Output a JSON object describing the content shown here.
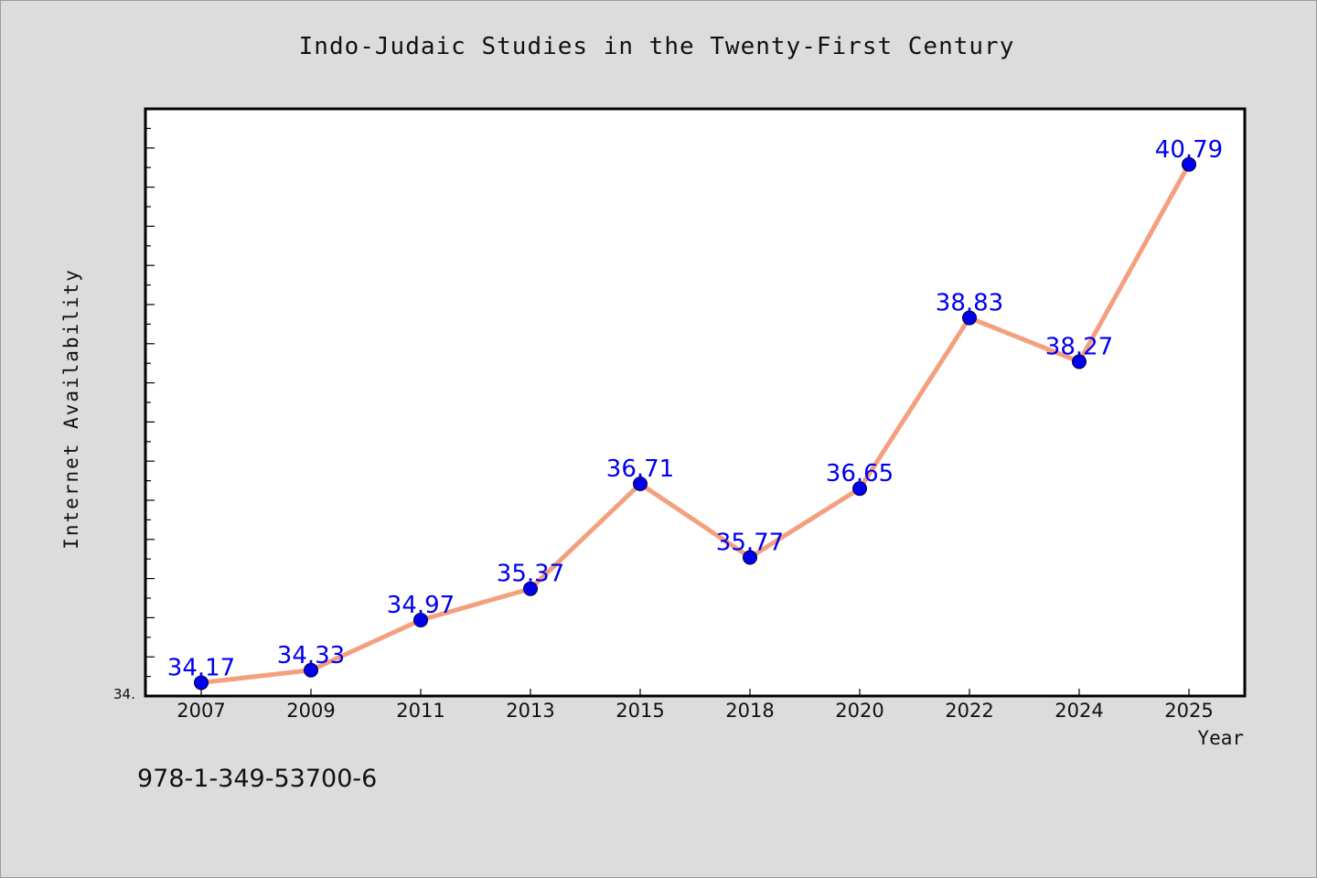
{
  "chart_data": {
    "type": "line",
    "title": "Indo-Judaic Studies in the Twenty-First Century",
    "xlabel": "Year",
    "ylabel": "Internet Availability",
    "categories": [
      "2007",
      "2009",
      "2011",
      "2013",
      "2015",
      "2018",
      "2020",
      "2022",
      "2024",
      "2025"
    ],
    "series": [
      {
        "values": [
          34.17,
          34.33,
          34.97,
          35.37,
          36.71,
          35.77,
          36.65,
          38.83,
          38.27,
          40.79
        ],
        "data_labels": [
          "34.17",
          "34.33",
          "34.97",
          "35.37",
          "36.71",
          "35.77",
          "36.65",
          "38.83",
          "38.27",
          "40.79"
        ],
        "line_color": "#f4a07e",
        "marker_color": "#0000ee",
        "label_color": "#0000ee"
      }
    ],
    "ylim": [
      34.0,
      41.5
    ],
    "y_tick_labels": [
      "34."
    ],
    "grid": false,
    "legend": "none"
  },
  "footer": {
    "isbn": "978-1-349-53700-6"
  },
  "colors": {
    "background": "#dcdcdc",
    "plot_area": "#ffffff",
    "axis": "#000000"
  }
}
